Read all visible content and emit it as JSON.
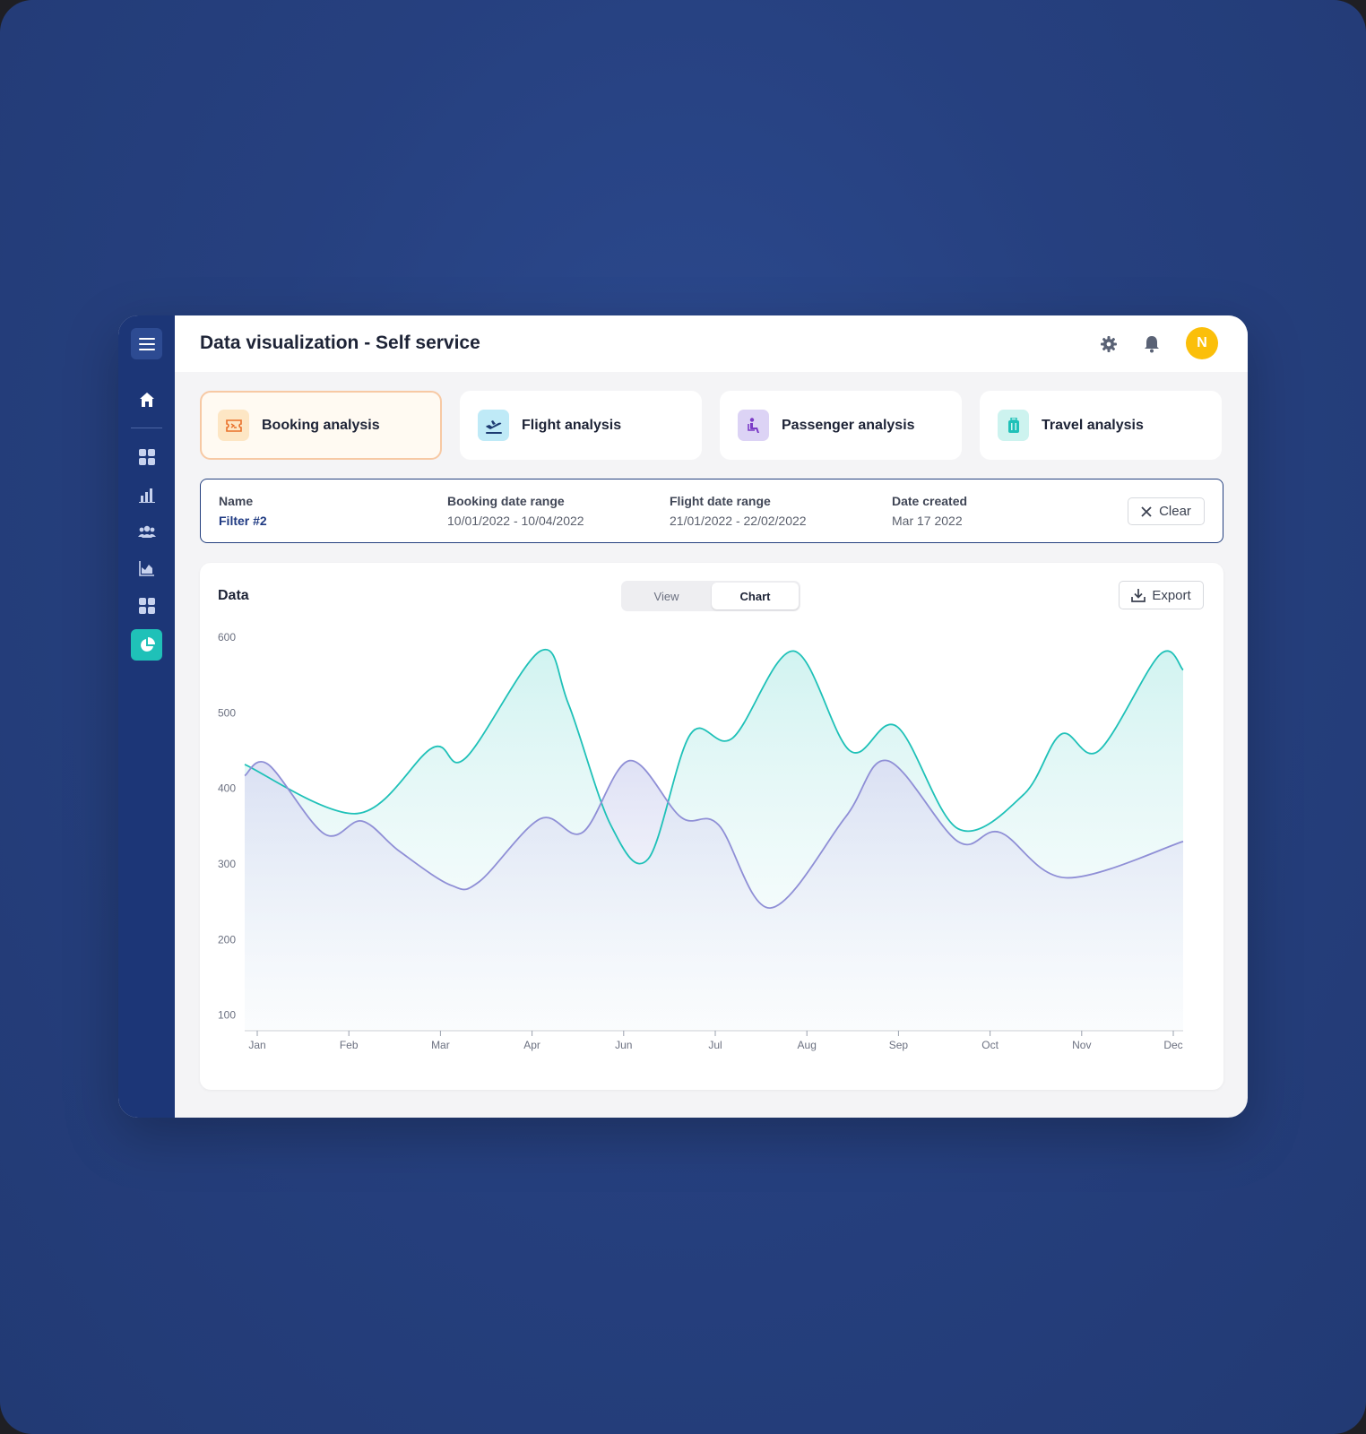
{
  "header": {
    "title": "Data visualization - Self service",
    "avatar_initial": "N"
  },
  "sidebar": {
    "items": [
      {
        "icon": "home-icon"
      },
      {
        "icon": "dashboard-icon"
      },
      {
        "icon": "bar-chart-icon"
      },
      {
        "icon": "users-icon"
      },
      {
        "icon": "area-chart-icon"
      },
      {
        "icon": "widgets-icon"
      },
      {
        "icon": "pie-chart-icon",
        "active": true
      }
    ]
  },
  "cards": [
    {
      "label": "Booking analysis",
      "icon": "ticket-icon",
      "active": true,
      "icon_bg": "#fde6c4",
      "icon_color": "#e9702a"
    },
    {
      "label": "Flight analysis",
      "icon": "plane-departure-icon",
      "icon_bg": "#bfeaf7",
      "icon_color": "#1d3b72"
    },
    {
      "label": "Passenger analysis",
      "icon": "seated-passenger-icon",
      "icon_bg": "#dcd3f5",
      "icon_color": "#7b3bc6"
    },
    {
      "label": "Travel analysis",
      "icon": "luggage-icon",
      "icon_bg": "#cdf3ef",
      "icon_color": "#1fc1b8"
    }
  ],
  "filter": {
    "name_label": "Name",
    "name_value": "Filter #2",
    "booking_label": "Booking date range",
    "booking_value": "10/01/2022 - 10/04/2022",
    "flight_label": "Flight date range",
    "flight_value": "21/01/2022 - 22/02/2022",
    "created_label": "Date created",
    "created_value": "Mar 17 2022",
    "clear_label": "Clear"
  },
  "panel": {
    "title": "Data",
    "toggle": {
      "view": "View",
      "chart": "Chart",
      "selected": "Chart"
    },
    "export_label": "Export"
  },
  "chart_data": {
    "type": "area",
    "categories": [
      "Jan",
      "Feb",
      "Mar",
      "Apr",
      "Jun",
      "Jul",
      "Aug",
      "Sep",
      "Oct",
      "Nov",
      "Dec"
    ],
    "yticks": [
      100,
      200,
      300,
      400,
      500,
      600
    ],
    "ylim": [
      90,
      600
    ],
    "grid": false,
    "series": [
      {
        "color": "#1fc1b8",
        "points": [
          [
            0.0,
            440
          ],
          [
            0.12,
            375
          ],
          [
            0.2,
            462
          ],
          [
            0.235,
            448
          ],
          [
            0.315,
            590
          ],
          [
            0.345,
            520
          ],
          [
            0.39,
            360
          ],
          [
            0.43,
            315
          ],
          [
            0.475,
            480
          ],
          [
            0.52,
            475
          ],
          [
            0.585,
            590
          ],
          [
            0.645,
            458
          ],
          [
            0.695,
            490
          ],
          [
            0.76,
            355
          ],
          [
            0.83,
            400
          ],
          [
            0.87,
            480
          ],
          [
            0.91,
            458
          ],
          [
            0.975,
            585
          ],
          [
            1.0,
            565
          ]
        ]
      },
      {
        "color": "#8f8fd6",
        "points": [
          [
            0.0,
            425
          ],
          [
            0.025,
            440
          ],
          [
            0.085,
            348
          ],
          [
            0.125,
            365
          ],
          [
            0.165,
            325
          ],
          [
            0.22,
            280
          ],
          [
            0.25,
            285
          ],
          [
            0.315,
            368
          ],
          [
            0.36,
            350
          ],
          [
            0.41,
            445
          ],
          [
            0.465,
            370
          ],
          [
            0.505,
            360
          ],
          [
            0.56,
            250
          ],
          [
            0.64,
            370
          ],
          [
            0.685,
            445
          ],
          [
            0.76,
            338
          ],
          [
            0.805,
            350
          ],
          [
            0.875,
            290
          ],
          [
            1.0,
            338
          ]
        ]
      }
    ]
  }
}
